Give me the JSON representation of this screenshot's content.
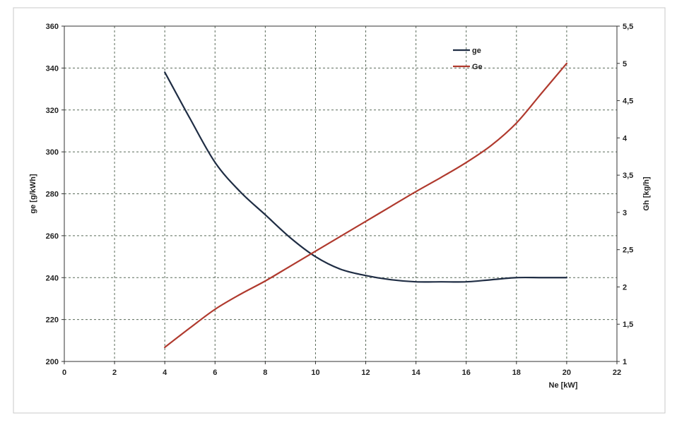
{
  "chart_data": {
    "type": "line",
    "title": "",
    "xlabel": "Ne [kW]",
    "ylabel": "ge [g/kWh]",
    "y2label": "Gh [kg/h]",
    "xlim": [
      0,
      22
    ],
    "ylim": [
      200,
      360
    ],
    "y2lim": [
      1,
      5.5
    ],
    "x_ticks": [
      "0",
      "2",
      "4",
      "6",
      "8",
      "10",
      "12",
      "14",
      "16",
      "18",
      "20",
      "22"
    ],
    "y_ticks": [
      "200",
      "220",
      "240",
      "260",
      "280",
      "300",
      "320",
      "340",
      "360"
    ],
    "y2_ticks": [
      "1",
      "1,5",
      "2",
      "2,5",
      "3",
      "3,5",
      "4",
      "4,5",
      "5",
      "5,5"
    ],
    "grid": true,
    "legend_position": "top-right",
    "series": [
      {
        "name": "ge",
        "axis": "left",
        "color": "#1f2d44",
        "x": [
          4,
          5,
          6,
          7,
          8,
          9,
          10,
          11,
          12,
          13,
          14,
          15,
          16,
          17,
          18,
          19,
          20
        ],
        "y": [
          338,
          316,
          295,
          281,
          270,
          259,
          250,
          244,
          241,
          239,
          238,
          238,
          238,
          239,
          240,
          240,
          240
        ]
      },
      {
        "name": "Ge",
        "axis": "right",
        "color": "#b03a2e",
        "x": [
          4,
          5,
          6,
          7,
          8,
          9,
          10,
          11,
          12,
          13,
          14,
          15,
          16,
          17,
          18,
          19,
          20
        ],
        "y": [
          1.19,
          1.45,
          1.7,
          1.9,
          2.08,
          2.28,
          2.48,
          2.68,
          2.88,
          3.08,
          3.28,
          3.47,
          3.67,
          3.9,
          4.2,
          4.6,
          5.0
        ]
      }
    ]
  }
}
